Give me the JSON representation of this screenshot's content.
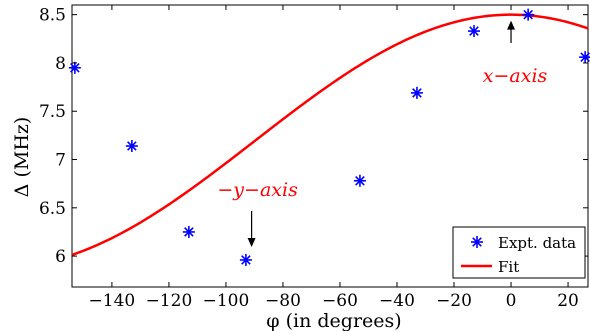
{
  "chart_data": {
    "type": "scatter",
    "title": "",
    "xlabel": "φ (in degrees)",
    "ylabel": "Δ (MHz)",
    "xlim": [
      -154,
      27
    ],
    "ylim": [
      5.68,
      8.6
    ],
    "xticks": [
      -140,
      -120,
      -100,
      -80,
      -60,
      -40,
      -20,
      0,
      20
    ],
    "xtick_labels": [
      "−140",
      "−120",
      "−100",
      "−80",
      "−60",
      "−40",
      "−20",
      "0",
      "20"
    ],
    "yticks": [
      6,
      6.5,
      7,
      7.5,
      8,
      8.5
    ],
    "ytick_labels": [
      "6",
      "6.5",
      "7",
      "7.5",
      "8",
      "8.5"
    ],
    "grid": false,
    "legend_position": "bottom-right",
    "series": [
      {
        "name": "Expt. data",
        "kind": "markers",
        "marker": "asterisk",
        "color": "#0000ff",
        "x": [
          -153,
          -133,
          -113,
          -93,
          -53,
          -33,
          -13,
          6,
          26
        ],
        "y": [
          7.95,
          7.14,
          6.25,
          5.96,
          6.78,
          7.69,
          8.33,
          8.5,
          8.06
        ]
      },
      {
        "name": "Fit",
        "kind": "line",
        "color": "#ff0000",
        "function": "Δ(φ) = 7.19 + 1.31·cos(φ)",
        "x_range": [
          -154,
          27
        ]
      }
    ],
    "annotations": [
      {
        "text": "x−axis",
        "color": "#ff0000",
        "arrow_to_x": 0,
        "arrow_to_y": 8.5
      },
      {
        "text": "−y−axis",
        "color": "#ff0000",
        "arrow_to_x": -90,
        "arrow_to_y": 5.88
      }
    ]
  }
}
